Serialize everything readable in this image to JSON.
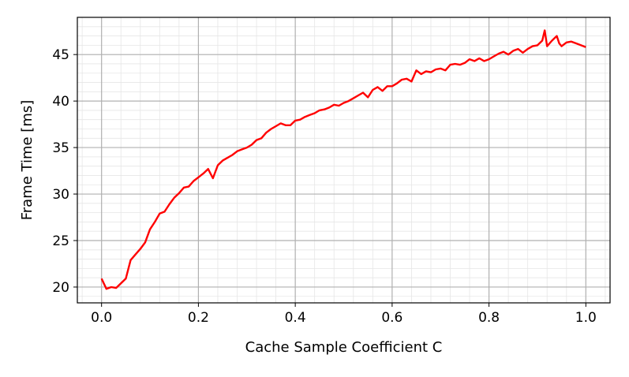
{
  "chart_data": {
    "type": "line",
    "title": "",
    "xlabel": "Cache Sample Coefficient C",
    "ylabel": "Frame Time [ms]",
    "xlim": [
      -0.05,
      1.05
    ],
    "ylim": [
      18.3,
      49.0
    ],
    "x_ticks": [
      0.0,
      0.2,
      0.4,
      0.6,
      0.8,
      1.0
    ],
    "x_tick_labels": [
      "0.0",
      "0.2",
      "0.4",
      "0.6",
      "0.8",
      "1.0"
    ],
    "y_ticks": [
      20,
      25,
      30,
      35,
      40,
      45
    ],
    "y_tick_labels": [
      "20",
      "25",
      "30",
      "35",
      "40",
      "45"
    ],
    "grid": true,
    "minor_grid": true,
    "line_color": "#ff0000",
    "series": [
      {
        "x": [
          0.0,
          0.01,
          0.02,
          0.03,
          0.04,
          0.05,
          0.06,
          0.07,
          0.08,
          0.09,
          0.1,
          0.11,
          0.12,
          0.13,
          0.14,
          0.15,
          0.16,
          0.17,
          0.18,
          0.19,
          0.2,
          0.21,
          0.22,
          0.23,
          0.24,
          0.25,
          0.26,
          0.27,
          0.28,
          0.29,
          0.3,
          0.31,
          0.32,
          0.33,
          0.34,
          0.35,
          0.36,
          0.37,
          0.38,
          0.39,
          0.4,
          0.41,
          0.42,
          0.43,
          0.44,
          0.45,
          0.46,
          0.47,
          0.48,
          0.49,
          0.5,
          0.51,
          0.52,
          0.53,
          0.54,
          0.55,
          0.56,
          0.57,
          0.58,
          0.59,
          0.6,
          0.61,
          0.62,
          0.63,
          0.64,
          0.65,
          0.66,
          0.67,
          0.68,
          0.69,
          0.7,
          0.71,
          0.72,
          0.73,
          0.74,
          0.75,
          0.76,
          0.77,
          0.78,
          0.79,
          0.8,
          0.81,
          0.82,
          0.83,
          0.84,
          0.85,
          0.86,
          0.87,
          0.88,
          0.89,
          0.9,
          0.91,
          0.915,
          0.92,
          0.93,
          0.94,
          0.945,
          0.95,
          0.96,
          0.97,
          0.98,
          0.99,
          1.0
        ],
        "y": [
          20.9,
          19.8,
          20.0,
          19.9,
          20.4,
          20.9,
          22.9,
          23.5,
          24.1,
          24.8,
          26.2,
          27.0,
          27.9,
          28.1,
          28.9,
          29.6,
          30.1,
          30.7,
          30.8,
          31.4,
          31.8,
          32.2,
          32.7,
          31.7,
          33.1,
          33.6,
          33.9,
          34.2,
          34.6,
          34.8,
          35.0,
          35.3,
          35.8,
          36.0,
          36.6,
          37.0,
          37.3,
          37.6,
          37.4,
          37.4,
          37.9,
          38.0,
          38.3,
          38.5,
          38.7,
          39.0,
          39.1,
          39.3,
          39.6,
          39.5,
          39.8,
          40.0,
          40.3,
          40.6,
          40.9,
          40.4,
          41.2,
          41.5,
          41.1,
          41.6,
          41.6,
          41.9,
          42.3,
          42.4,
          42.1,
          43.3,
          42.9,
          43.2,
          43.1,
          43.4,
          43.5,
          43.3,
          43.9,
          44.0,
          43.9,
          44.1,
          44.5,
          44.3,
          44.6,
          44.3,
          44.5,
          44.8,
          45.1,
          45.3,
          45.0,
          45.4,
          45.6,
          45.2,
          45.6,
          45.9,
          46.0,
          46.5,
          47.6,
          45.9,
          46.5,
          47.0,
          46.2,
          45.9,
          46.3,
          46.4,
          46.2,
          46.0,
          45.8
        ]
      }
    ]
  }
}
